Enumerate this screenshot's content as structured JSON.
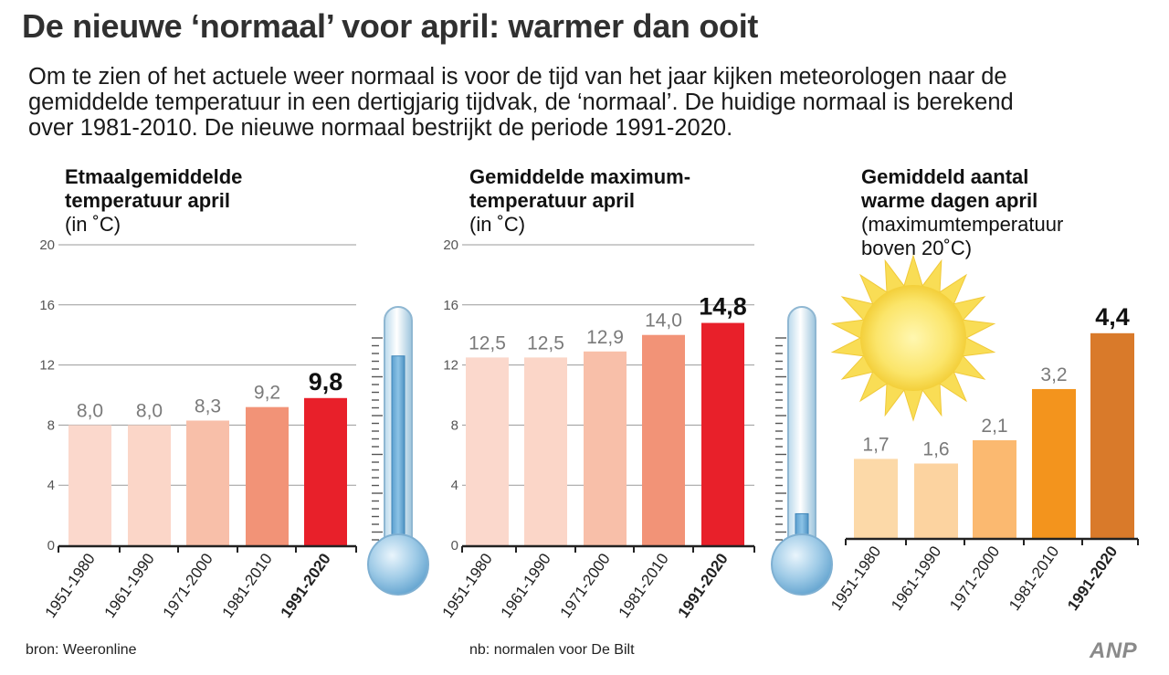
{
  "title": "De nieuwe ‘normaal’ voor april: warmer dan ooit",
  "intro": [
    "Om te zien of het actuele weer normaal is voor de tijd van het jaar kijken meteorologen naar de",
    "gemiddelde temperatuur in een dertigjarig tijdvak, de ‘normaal’. De huidige normaal is berekend",
    "over 1981-2010. De nieuwe normaal bestrijkt de periode 1991-2020."
  ],
  "charts": [
    {
      "bold_lines": [
        "Etmaalgemiddelde",
        "temperatuur april"
      ],
      "normal_lines": [
        "(in ˚C)"
      ]
    },
    {
      "bold_lines": [
        "Gemiddelde maximum-",
        "temperatuur april"
      ],
      "normal_lines": [
        "(in ˚C)"
      ]
    },
    {
      "bold_lines": [
        "Gemiddeld aantal",
        "warme dagen april"
      ],
      "normal_lines": [
        "(maximumtemperatuur",
        "boven 20˚C)"
      ]
    }
  ],
  "chart_data": [
    {
      "type": "bar",
      "title": "Etmaalgemiddelde temperatuur april (in ˚C)",
      "categories": [
        "1951-1980",
        "1961-1990",
        "1971-2000",
        "1981-2010",
        "1991-2020"
      ],
      "values": [
        8.0,
        8.0,
        8.3,
        9.2,
        9.8
      ],
      "value_labels": [
        "8,0",
        "8,0",
        "8,3",
        "9,2",
        "9,8"
      ],
      "colors": [
        "#fbd8cc",
        "#fbd6c8",
        "#f8bfa9",
        "#f29377",
        "#e8202a"
      ],
      "ylim": [
        0,
        20
      ],
      "ticks": [
        0,
        4,
        8,
        12,
        16,
        20
      ],
      "tick_labels": [
        "0",
        "4",
        "8",
        "12",
        "16",
        "20"
      ],
      "grid": true
    },
    {
      "type": "bar",
      "title": "Gemiddelde maximumtemperatuur april (in ˚C)",
      "categories": [
        "1951-1980",
        "1961-1990",
        "1971-2000",
        "1981-2010",
        "1991-2020"
      ],
      "values": [
        12.5,
        12.5,
        12.9,
        14.0,
        14.8
      ],
      "value_labels": [
        "12,5",
        "12,5",
        "12,9",
        "14,0",
        "14,8"
      ],
      "colors": [
        "#fbd8cc",
        "#fbd6c8",
        "#f8bfa9",
        "#f29377",
        "#e8202a"
      ],
      "ylim": [
        0,
        20
      ],
      "ticks": [
        0,
        4,
        8,
        12,
        16,
        20
      ],
      "tick_labels": [
        "0",
        "4",
        "8",
        "12",
        "16",
        "20"
      ],
      "grid": true
    },
    {
      "type": "bar",
      "title": "Gemiddeld aantal warme dagen april (maximumtemperatuur boven 20˚C)",
      "categories": [
        "1951-1980",
        "1961-1990",
        "1971-2000",
        "1981-2010",
        "1991-2020"
      ],
      "values": [
        1.7,
        1.6,
        2.1,
        3.2,
        4.4
      ],
      "value_labels": [
        "1,7",
        "1,6",
        "2,1",
        "3,2",
        "4,4"
      ],
      "colors": [
        "#fcd9a8",
        "#fcd3a0",
        "#fbb970",
        "#f3941d",
        "#d97a2a"
      ],
      "ylim": [
        0,
        6.3
      ],
      "ticks": [],
      "tick_labels": [],
      "grid": false
    }
  ],
  "thermometer_levels": [
    0.82,
    0.14
  ],
  "footer": {
    "source": "bron:  Weeronline",
    "note": "nb: normalen voor De Bilt",
    "brand": "ANP"
  }
}
